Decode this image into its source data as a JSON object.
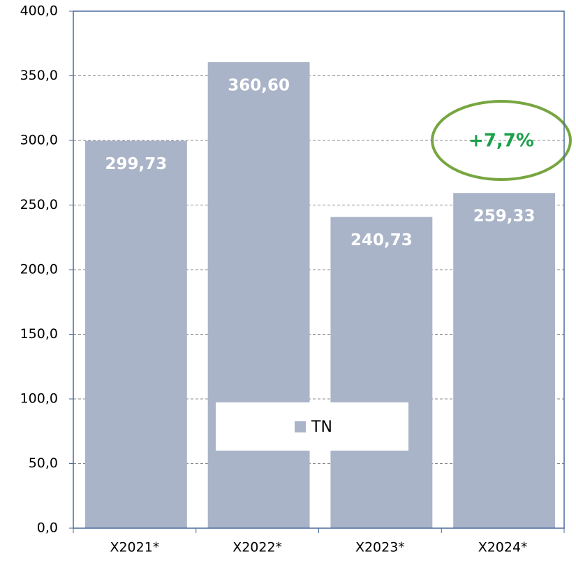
{
  "chart_data": {
    "type": "bar",
    "categories": [
      "X2021*",
      "X2022*",
      "X2023*",
      "X2024*"
    ],
    "series": [
      {
        "name": "TN",
        "color": "#aab4c8",
        "values": [
          299.73,
          360.6,
          240.73,
          259.33
        ],
        "value_labels": [
          "299,73",
          "360,60",
          "240,73",
          "259,33"
        ]
      }
    ],
    "ylim": [
      0,
      400
    ],
    "yticks": [
      {
        "value": 0,
        "label": "0,0"
      },
      {
        "value": 50,
        "label": "50,0"
      },
      {
        "value": 100,
        "label": "100,0"
      },
      {
        "value": 150,
        "label": "150,0"
      },
      {
        "value": 200,
        "label": "200,0"
      },
      {
        "value": 250,
        "label": "250,0"
      },
      {
        "value": 300,
        "label": "300,0"
      },
      {
        "value": 350,
        "label": "350,0"
      },
      {
        "value": 400,
        "label": "400,0"
      }
    ],
    "grid": true,
    "annotation": "+7,7%",
    "legend": "center"
  }
}
